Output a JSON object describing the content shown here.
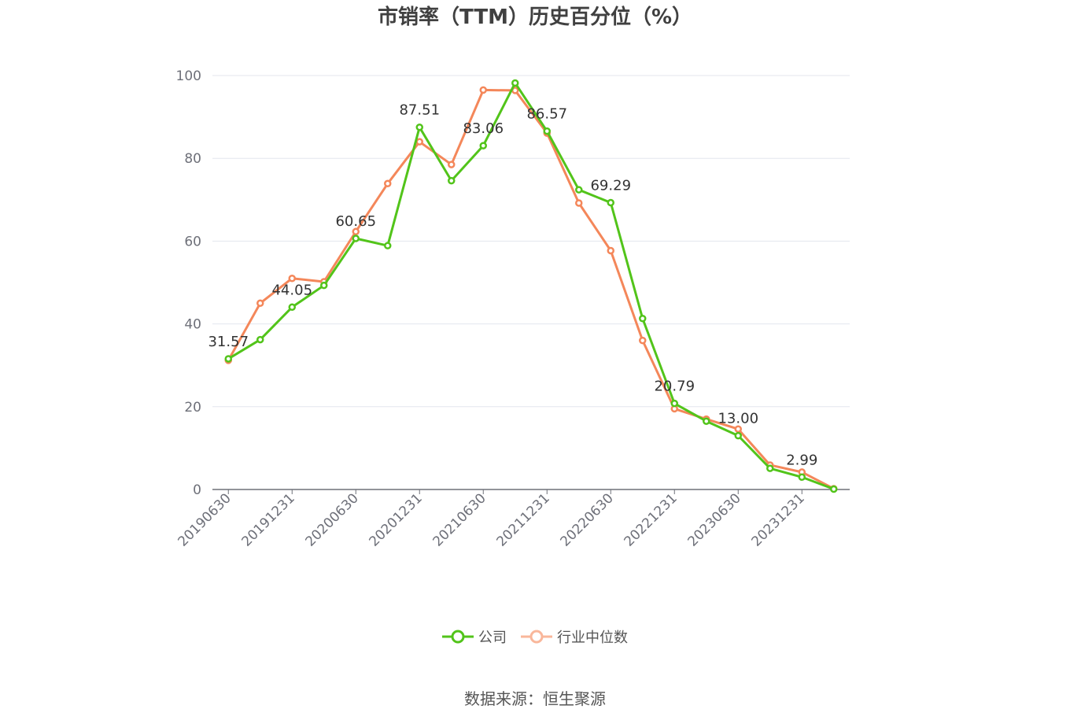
{
  "title": "市销率（TTM）历史百分位（%）",
  "source_text": "数据来源：恒生聚源",
  "colors": {
    "company": "#52c41a",
    "industry": "#f4875a",
    "grid": "#e3e6ee",
    "axis": "#6e7079"
  },
  "chart_data": {
    "type": "line",
    "title": "市销率（TTM）历史百分位（%）",
    "xlabel": "",
    "ylabel": "",
    "ylim": [
      0,
      100
    ],
    "yticks": [
      "0",
      "20",
      "40",
      "60",
      "80",
      "100"
    ],
    "x": [
      "20190630",
      "20190930",
      "20191231",
      "20200331",
      "20200630",
      "20200930",
      "20201231",
      "20210331",
      "20210630",
      "20210930",
      "20211231",
      "20220331",
      "20220630",
      "20220930",
      "20221231",
      "20230331",
      "20230630",
      "20230930",
      "20231231",
      "20240331"
    ],
    "xtick_labels": [
      "20190630",
      "20191231",
      "20200630",
      "20201231",
      "20210630",
      "20211231",
      "20220630",
      "20221231",
      "20230630",
      "20231231"
    ],
    "grid": true,
    "legend": "bottom",
    "series": [
      {
        "name": "公司",
        "values": [
          31.57,
          36.2,
          44.05,
          49.3,
          60.65,
          58.9,
          87.51,
          74.6,
          83.06,
          98.2,
          86.57,
          72.4,
          69.29,
          41.3,
          20.79,
          16.5,
          13.0,
          5.1,
          2.99,
          0.1
        ],
        "labels": {
          "0": "31.57",
          "2": "44.05",
          "4": "60.65",
          "6": "87.51",
          "8": "83.06",
          "10": "86.57",
          "12": "69.29",
          "14": "20.79",
          "16": "13.00",
          "18": "2.99"
        }
      },
      {
        "name": "行业中位数",
        "values": [
          31.2,
          45.0,
          51.0,
          50.2,
          62.3,
          73.9,
          84.0,
          78.5,
          96.5,
          96.4,
          86.1,
          69.2,
          57.7,
          36.0,
          19.5,
          17.0,
          14.6,
          5.9,
          4.2,
          0.2
        ]
      }
    ]
  },
  "legend": {
    "company_label": "公司",
    "industry_label": "行业中位数"
  }
}
